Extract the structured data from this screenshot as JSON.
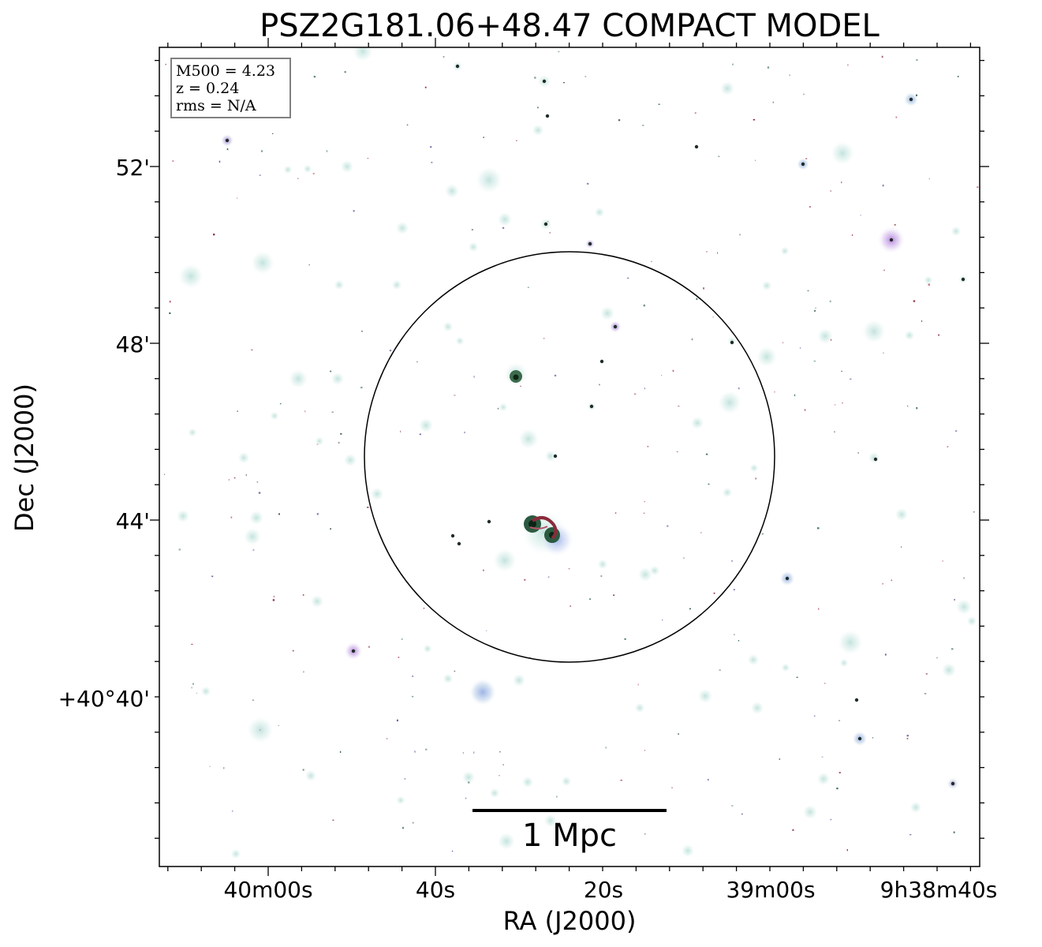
{
  "title": "PSZ2G181.06+48.47 COMPACT MODEL",
  "axes": {
    "xlabel": "RA (J2000)",
    "ylabel": "Dec (J2000)",
    "xticks": [
      "40m00s",
      "40s",
      "20s",
      "39m00s",
      "9h38m40s"
    ],
    "yticks": [
      "52'",
      "48'",
      "44'",
      "+40°40'"
    ]
  },
  "info_box": {
    "line1": "M500 = 4.23",
    "line2": "z = 0.24",
    "line3": "rms = N/A"
  },
  "scale_bar": {
    "label": "1 Mpc"
  },
  "colors": {
    "frame": "#000000",
    "halo": "#cfe8e4",
    "halo_blue": "#b9c9ee",
    "halo_purple": "#c7a6e0",
    "core_dark": "#1f4030",
    "core_red": "#8a2b3b"
  }
}
